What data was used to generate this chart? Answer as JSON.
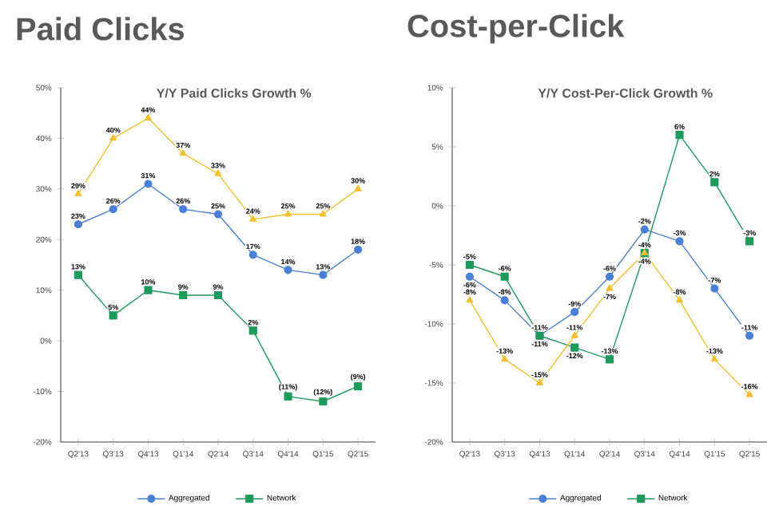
{
  "chart_data": [
    {
      "type": "line",
      "title": "Paid Clicks",
      "subtitle": "Y/Y Paid Clicks Growth %",
      "categories": [
        "Q2'13",
        "Q3'13",
        "Q4'13",
        "Q1'14",
        "Q2'14",
        "Q3'14",
        "Q4'14",
        "Q1'15",
        "Q2'15"
      ],
      "ylim": [
        -20,
        50
      ],
      "yticks": [
        {
          "value": -20,
          "label": "-20%"
        },
        {
          "value": -10,
          "label": "-10%"
        },
        {
          "value": 0,
          "label": "0%"
        },
        {
          "value": 10,
          "label": "10%"
        },
        {
          "value": 20,
          "label": "20%"
        },
        {
          "value": 30,
          "label": "30%"
        },
        {
          "value": 40,
          "label": "40%"
        },
        {
          "value": 50,
          "label": "50%"
        }
      ],
      "grid": false,
      "legend": "bottom",
      "series": [
        {
          "name": "Aggregated",
          "color": "#4a7fd6",
          "marker": "circle",
          "values": [
            23,
            26,
            31,
            26,
            25,
            17,
            14,
            13,
            18
          ],
          "value_labels": [
            "23%",
            "26%",
            "31%",
            "26%",
            "25%",
            "17%",
            "14%",
            "13%",
            "18%"
          ]
        },
        {
          "name": "Network",
          "color": "#1e9a5c",
          "marker": "square",
          "values": [
            13,
            5,
            10,
            9,
            9,
            2,
            -11,
            -12,
            -9
          ],
          "value_labels": [
            "13%",
            "5%",
            "10%",
            "9%",
            "9%",
            "2%",
            "(11%)",
            "(12%)",
            "(9%)"
          ]
        },
        {
          "color": "#f0c030",
          "marker": "triangle",
          "values": [
            29,
            40,
            44,
            37,
            33,
            24,
            25,
            25,
            30
          ],
          "value_labels": [
            "29%",
            "40%",
            "44%",
            "37%",
            "33%",
            "24%",
            "25%",
            "25%",
            "30%"
          ]
        }
      ]
    },
    {
      "type": "line",
      "title": "Cost-per-Click",
      "subtitle": "Y/Y Cost-Per-Click Growth %",
      "categories": [
        "Q2'13",
        "Q3'13",
        "Q4'13",
        "Q1'14",
        "Q2'14",
        "Q3'14",
        "Q4'14",
        "Q1'15",
        "Q2'15"
      ],
      "ylim": [
        -20,
        10
      ],
      "yticks": [
        {
          "value": -20,
          "label": "-20%"
        },
        {
          "value": -15,
          "label": "-15%"
        },
        {
          "value": -10,
          "label": "-10%"
        },
        {
          "value": -5,
          "label": "-5%"
        },
        {
          "value": 0,
          "label": "0%"
        },
        {
          "value": 5,
          "label": "5%"
        },
        {
          "value": 10,
          "label": "10%"
        }
      ],
      "grid": false,
      "legend": "bottom",
      "series": [
        {
          "name": "Aggregated",
          "color": "#4a7fd6",
          "marker": "circle",
          "values": [
            -6,
            -8,
            -11,
            -9,
            -6,
            -2,
            -3,
            -7,
            -11
          ],
          "value_labels": [
            "-6%",
            "-8%",
            "-11%",
            "-9%",
            "-6%",
            "-2%",
            "-3%",
            "-7%",
            "-11%"
          ]
        },
        {
          "name": "Network",
          "color": "#1e9a5c",
          "marker": "square",
          "values": [
            -5,
            -6,
            -11,
            -12,
            -13,
            -4,
            6,
            2,
            -3
          ],
          "value_labels": [
            "-5%",
            "-6%",
            "-11%",
            "-12%",
            "-13%",
            "-4%",
            "6%",
            "2%",
            "-3%"
          ]
        },
        {
          "color": "#f0c030",
          "marker": "triangle",
          "values": [
            -8,
            -13,
            -15,
            -11,
            -7,
            -4,
            -8,
            -13,
            -16
          ],
          "value_labels": [
            "-8%",
            "-13%",
            "-15%",
            "-11%",
            "-7%",
            "-4%",
            "-8%",
            "-13%",
            "-16%"
          ]
        }
      ]
    }
  ]
}
